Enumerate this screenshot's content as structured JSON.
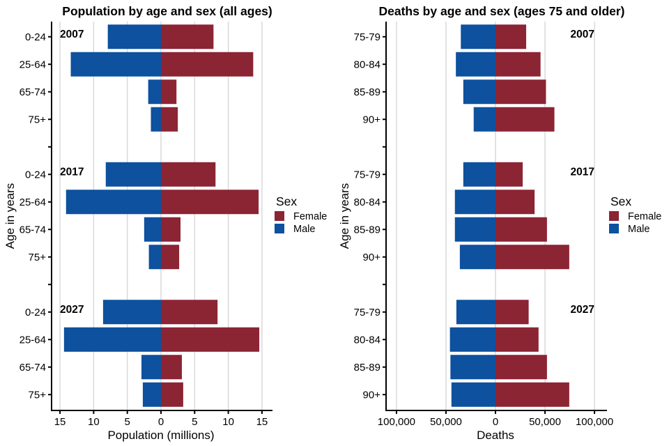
{
  "colors": {
    "female": "#8B2433",
    "male": "#0D519F",
    "grid": "#D9D9D9",
    "axis": "#000000",
    "text": "#000000",
    "background": "#FFFFFF"
  },
  "legend": {
    "title": "Sex",
    "items": [
      {
        "label": "Female",
        "color_key": "female"
      },
      {
        "label": "Male",
        "color_key": "male"
      }
    ]
  },
  "chart_data": [
    {
      "type": "bar",
      "variant": "population-pyramid",
      "title": "Population by age and sex (all ages)",
      "xlabel": "Population (millions)",
      "ylabel": "Age in years",
      "grid": true,
      "legend_position": "right",
      "xlim": [
        -16.25,
        16.25
      ],
      "x_ticks": [
        {
          "v": -15,
          "label": "15"
        },
        {
          "v": -10,
          "label": "10"
        },
        {
          "v": -5,
          "label": "5"
        },
        {
          "v": 0,
          "label": "0"
        },
        {
          "v": 5,
          "label": "5"
        },
        {
          "v": 10,
          "label": "10"
        },
        {
          "v": 15,
          "label": "15"
        }
      ],
      "categories": [
        "0-24",
        "25-64",
        "65-74",
        "75+"
      ],
      "year_label_align": "left",
      "panels": [
        {
          "year": "2007",
          "series": [
            {
              "name": "Male",
              "values": [
                7.9,
                13.4,
                1.9,
                1.5
              ]
            },
            {
              "name": "Female",
              "values": [
                7.8,
                13.7,
                2.3,
                2.5
              ]
            }
          ]
        },
        {
          "year": "2017",
          "series": [
            {
              "name": "Male",
              "values": [
                8.2,
                14.1,
                2.5,
                1.8
              ]
            },
            {
              "name": "Female",
              "values": [
                8.1,
                14.5,
                2.9,
                2.7
              ]
            }
          ]
        },
        {
          "year": "2027",
          "series": [
            {
              "name": "Male",
              "values": [
                8.6,
                14.4,
                2.9,
                2.7
              ]
            },
            {
              "name": "Female",
              "values": [
                8.4,
                14.6,
                3.1,
                3.3
              ]
            }
          ]
        }
      ]
    },
    {
      "type": "bar",
      "variant": "population-pyramid",
      "title": "Deaths by age and sex (ages 75 and older)",
      "xlabel": "Deaths",
      "ylabel": "Age in years",
      "grid": true,
      "legend_position": "right",
      "xlim": [
        -110500,
        110500
      ],
      "x_ticks": [
        {
          "v": -100000,
          "label": "100,000"
        },
        {
          "v": -50000,
          "label": "50,000"
        },
        {
          "v": 0,
          "label": "0"
        },
        {
          "v": 50000,
          "label": "50,000"
        },
        {
          "v": 100000,
          "label": "100,000"
        }
      ],
      "categories": [
        "75-79",
        "80-84",
        "85-89",
        "90+"
      ],
      "year_label_align": "right",
      "panels": [
        {
          "year": "2007",
          "series": [
            {
              "name": "Male",
              "values": [
                35000,
                40000,
                32500,
                22000
              ]
            },
            {
              "name": "Female",
              "values": [
                31000,
                45500,
                51000,
                59500
              ]
            }
          ]
        },
        {
          "year": "2017",
          "series": [
            {
              "name": "Male",
              "values": [
                32500,
                41000,
                41000,
                36000
              ]
            },
            {
              "name": "Female",
              "values": [
                27500,
                39500,
                52000,
                74500
              ]
            }
          ]
        },
        {
          "year": "2027",
          "series": [
            {
              "name": "Male",
              "values": [
                39500,
                46000,
                45500,
                44500
              ]
            },
            {
              "name": "Female",
              "values": [
                33500,
                43500,
                52000,
                74500
              ]
            }
          ]
        }
      ]
    }
  ]
}
